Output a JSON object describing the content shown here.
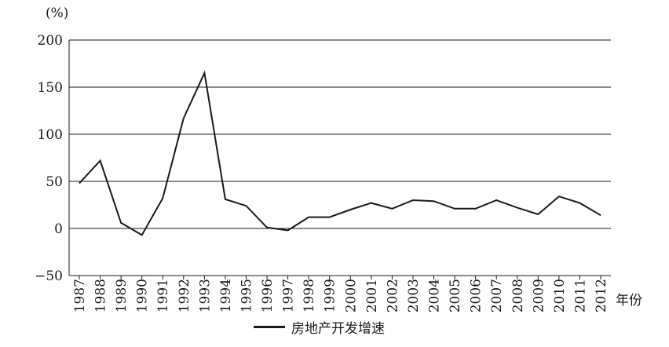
{
  "chart_data": {
    "type": "line",
    "title": "",
    "ylabel": "(%)",
    "xlabel": "年份",
    "ylim": [
      -50,
      200
    ],
    "yticks": [
      200,
      150,
      100,
      50,
      0,
      -50
    ],
    "grid": "horizontal",
    "legend_position": "bottom",
    "x": [
      "1987",
      "1988",
      "1989",
      "1990",
      "1991",
      "1992",
      "1993",
      "1994",
      "1995",
      "1996",
      "1997",
      "1998",
      "1999",
      "2000",
      "2001",
      "2002",
      "2003",
      "2004",
      "2005",
      "2006",
      "2007",
      "2008",
      "2009",
      "2010",
      "2011",
      "2012"
    ],
    "series": [
      {
        "name": "房地产开发增速",
        "color": "#1a1a1a",
        "values": [
          48,
          72,
          6,
          -7,
          32,
          117,
          165,
          31,
          24,
          1,
          -2,
          12,
          12,
          20,
          27,
          21,
          30,
          29,
          21,
          21,
          30,
          22,
          15,
          34,
          27,
          14
        ]
      }
    ]
  }
}
